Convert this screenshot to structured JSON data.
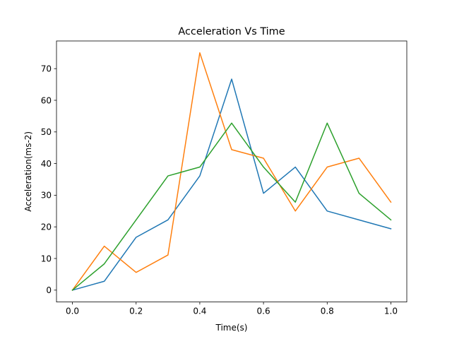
{
  "chart_data": {
    "type": "line",
    "title": "Acceleration Vs Time",
    "xlabel": "Time(s)",
    "ylabel": "Acceleration(ms-2)",
    "xlim": [
      -0.05,
      1.05
    ],
    "ylim": [
      -3.75,
      78.75
    ],
    "grid": false,
    "x": [
      0.0,
      0.1,
      0.2,
      0.3,
      0.4,
      0.5,
      0.6,
      0.7,
      0.8,
      0.9,
      1.0
    ],
    "x_ticks": [
      0.0,
      0.2,
      0.4,
      0.6,
      0.8,
      1.0
    ],
    "x_tick_labels": [
      "0.0",
      "0.2",
      "0.4",
      "0.6",
      "0.8",
      "1.0"
    ],
    "y_ticks": [
      0,
      10,
      20,
      30,
      40,
      50,
      60,
      70
    ],
    "y_tick_labels": [
      "0",
      "10",
      "20",
      "30",
      "40",
      "50",
      "60",
      "70"
    ],
    "series": [
      {
        "color": "#1f77b4",
        "values": [
          0,
          2.8,
          16.7,
          22.2,
          36.1,
          66.7,
          30.6,
          38.9,
          25.0,
          22.2,
          19.4
        ]
      },
      {
        "color": "#ff7f0e",
        "values": [
          0,
          13.9,
          5.6,
          11.1,
          75.0,
          44.4,
          41.7,
          25.0,
          38.9,
          41.7,
          27.8
        ]
      },
      {
        "color": "#2ca02c",
        "values": [
          0,
          8.3,
          22.2,
          36.1,
          38.9,
          52.8,
          38.9,
          27.8,
          52.8,
          30.6,
          22.2
        ]
      }
    ]
  }
}
